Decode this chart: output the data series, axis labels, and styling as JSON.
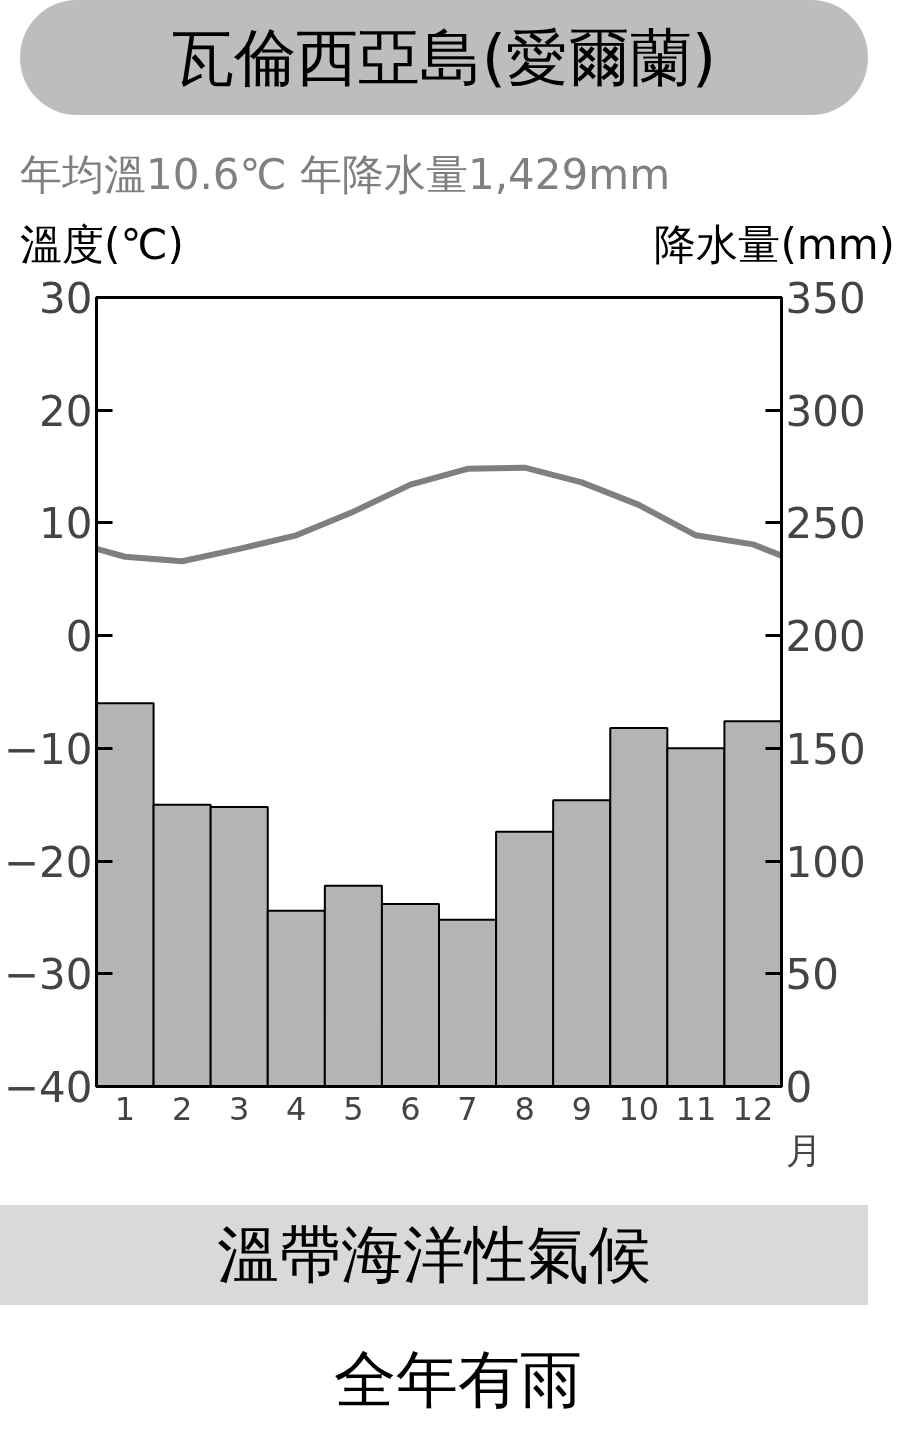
{
  "chart_data": {
    "type": "bar",
    "title": "瓦倫西亞島(愛爾蘭)",
    "subtitle": "年均溫10.6℃ 年降水量1,429mm",
    "xlabel": "月",
    "ylabel": "溫度(℃)",
    "y2label": "降水量(mm)",
    "x": [
      1,
      2,
      3,
      4,
      5,
      6,
      7,
      8,
      9,
      10,
      11,
      12
    ],
    "xlim": [
      0.5,
      12.5
    ],
    "xticks": [
      1,
      2,
      3,
      4,
      5,
      6,
      7,
      8,
      9,
      10,
      11,
      12
    ],
    "ylim": [
      -40,
      30
    ],
    "yticks": [
      -40,
      -30,
      -20,
      -10,
      0,
      10,
      20,
      30
    ],
    "y2lim": [
      0,
      350
    ],
    "y2ticks": [
      0,
      50,
      100,
      150,
      200,
      250,
      300,
      350
    ],
    "series": [
      {
        "axis": "y2",
        "color": "#b4b4b4",
        "values": [
          170,
          125,
          124,
          78,
          89,
          81,
          74,
          113,
          127,
          159,
          150,
          162
        ]
      },
      {
        "type": "line",
        "axis": "y",
        "color": "#7f7f7f",
        "x": [
          0.5,
          1,
          2,
          3,
          4,
          5,
          6,
          7,
          8,
          9,
          10,
          11,
          12,
          12.5
        ],
        "values": [
          7.7,
          7.0,
          6.6,
          7.7,
          8.9,
          11.0,
          13.4,
          14.8,
          14.9,
          13.6,
          11.6,
          8.9,
          8.1,
          7.1
        ]
      }
    ],
    "annotations": [
      "溫帶海洋性氣候",
      "全年有雨"
    ],
    "grid": false
  }
}
